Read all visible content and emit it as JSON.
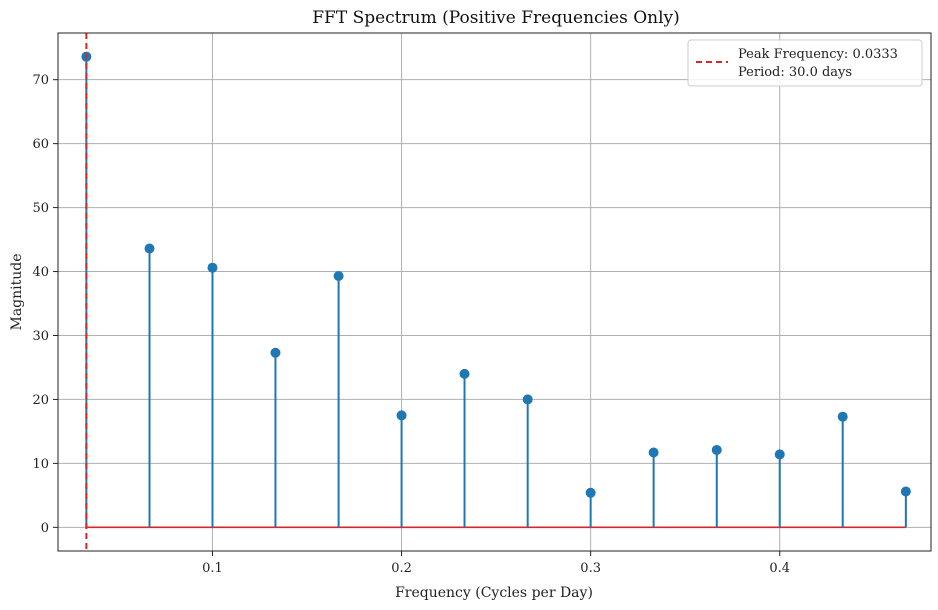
{
  "chart_data": {
    "type": "stem",
    "title": "FFT Spectrum (Positive Frequencies Only)",
    "xlabel": "Frequency (Cycles per Day)",
    "ylabel": "Magnitude",
    "xlim": [
      0.0183,
      0.48
    ],
    "ylim": [
      -3.7,
      77.3
    ],
    "xticks": [
      0.1,
      0.2,
      0.3,
      0.4
    ],
    "xtick_labels": [
      "0.1",
      "0.2",
      "0.3",
      "0.4"
    ],
    "yticks": [
      0,
      10,
      20,
      30,
      40,
      50,
      60,
      70
    ],
    "ytick_labels": [
      "0",
      "10",
      "20",
      "30",
      "40",
      "50",
      "60",
      "70"
    ],
    "grid": true,
    "legend_position": "top-right",
    "series": [
      {
        "name": "",
        "color": "#1f77b4",
        "baseline_color": "#d62728",
        "x": [
          0.0333,
          0.0667,
          0.1,
          0.1333,
          0.1667,
          0.2,
          0.2333,
          0.2667,
          0.3,
          0.3333,
          0.3667,
          0.4,
          0.4333,
          0.4667
        ],
        "y": [
          73.6,
          43.6,
          40.6,
          27.3,
          39.3,
          17.5,
          24.0,
          20.0,
          5.4,
          11.7,
          12.1,
          11.4,
          17.3,
          5.6
        ]
      }
    ],
    "reference_lines": [
      {
        "orientation": "vertical",
        "x": 0.0333,
        "style": "dashed",
        "color": "#d62728",
        "legend_lines": [
          "Peak Frequency: 0.0333",
          "Period: 30.0 days"
        ]
      }
    ]
  }
}
